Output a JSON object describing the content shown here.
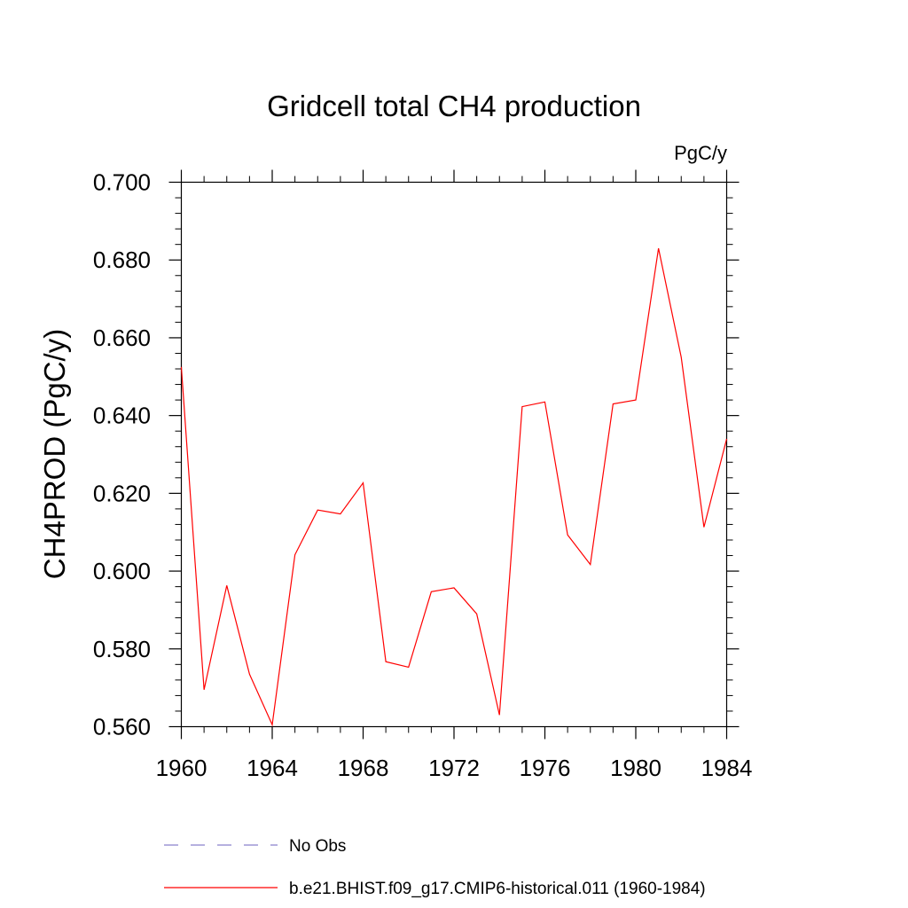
{
  "chart_data": {
    "type": "line",
    "title": "Gridcell total CH4 production",
    "units": "PgC/y",
    "xlabel": "",
    "ylabel": "CH4PROD  (PgC/y)",
    "xlim": [
      1960,
      1984
    ],
    "ylim": [
      0.56,
      0.7
    ],
    "xticks": [
      1960,
      1964,
      1968,
      1972,
      1976,
      1980,
      1984
    ],
    "xtick_labels": [
      "1960",
      "1964",
      "1968",
      "1972",
      "1976",
      "1980",
      "1984"
    ],
    "yticks": [
      0.56,
      0.58,
      0.6,
      0.62,
      0.64,
      0.66,
      0.68,
      0.7
    ],
    "ytick_labels": [
      "0.560",
      "0.580",
      "0.600",
      "0.620",
      "0.640",
      "0.660",
      "0.680",
      "0.700"
    ],
    "grid": false,
    "legend_position": "bottom",
    "series": [
      {
        "name": "No Obs",
        "color": "#8a80cc",
        "dash": "dashed",
        "x": [],
        "y": []
      },
      {
        "name": "b.e21.BHIST.f09_g17.CMIP6-historical.011 (1960-1984)",
        "color": "#ff0000",
        "dash": "solid",
        "x": [
          1960,
          1961,
          1962,
          1963,
          1964,
          1965,
          1966,
          1967,
          1968,
          1969,
          1970,
          1971,
          1972,
          1973,
          1974,
          1975,
          1976,
          1977,
          1978,
          1979,
          1980,
          1981,
          1982,
          1983,
          1984
        ],
        "y": [
          0.6525,
          0.5695,
          0.5963,
          0.5735,
          0.5605,
          0.6042,
          0.6157,
          0.6147,
          0.6227,
          0.5767,
          0.5753,
          0.5947,
          0.5957,
          0.589,
          0.563,
          0.6423,
          0.6435,
          0.6093,
          0.6017,
          0.643,
          0.644,
          0.683,
          0.655,
          0.6113,
          0.634
        ]
      }
    ]
  }
}
